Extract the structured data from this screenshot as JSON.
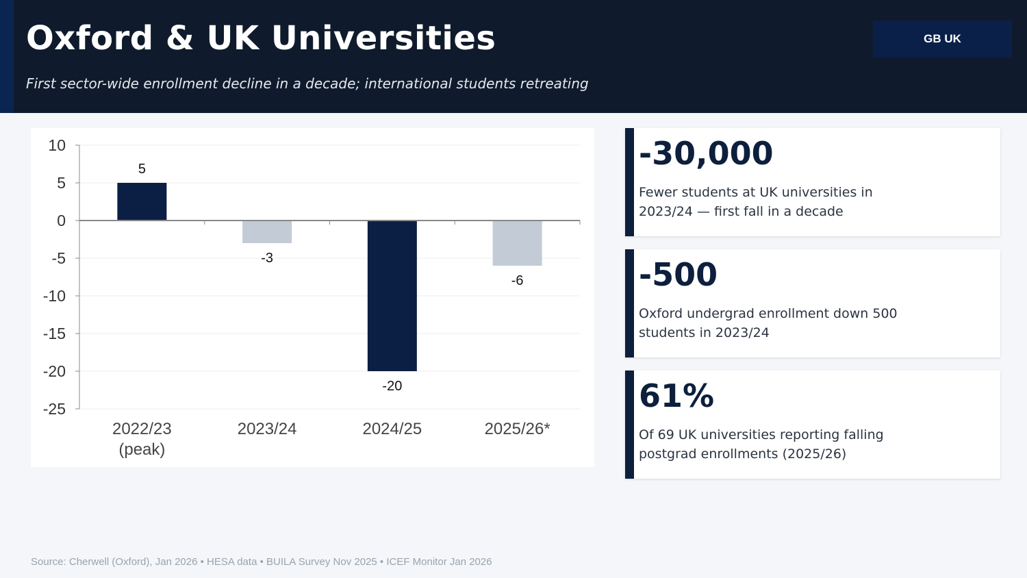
{
  "header": {
    "title": "Oxford & UK Universities",
    "subtitle": "First sector-wide enrollment decline in a decade; international students retreating",
    "badge": "GB UK"
  },
  "colors": {
    "dark": "#0b1f45",
    "light": "#c2cbd6",
    "header_bg": "#0f1b2d"
  },
  "chart_data": {
    "type": "bar",
    "categories": [
      "2022/23\n(peak)",
      "2023/24",
      "2024/25",
      "2025/26*"
    ],
    "values": [
      5,
      -3,
      -20,
      -6
    ],
    "bar_colors": [
      "#0b1f45",
      "#c2cbd6",
      "#0b1f45",
      "#c2cbd6"
    ],
    "data_labels": [
      "5",
      "-3",
      "-20",
      "-6"
    ],
    "yticks": [
      "10",
      "5",
      "0",
      "-5",
      "-10",
      "-15",
      "-20",
      "-25"
    ],
    "ylim": [
      -25,
      10
    ],
    "grid": true
  },
  "cards": [
    {
      "value": "-30,000",
      "desc": "Fewer students at UK universities in 2023/24 — first fall in a decade"
    },
    {
      "value": "-500",
      "desc": "Oxford undergrad enrollment down 500 students in 2023/24"
    },
    {
      "value": "61%",
      "desc": "Of 69 UK universities reporting falling postgrad enrollments (2025/26)"
    }
  ],
  "source": "Source: Cherwell (Oxford), Jan 2026 • HESA data • BUILA Survey Nov 2025 • ICEF Monitor Jan 2026"
}
